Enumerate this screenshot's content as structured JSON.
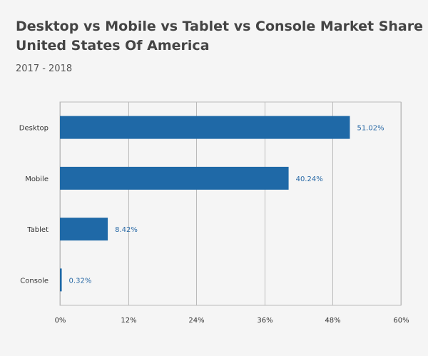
{
  "title_line1": "Desktop vs Mobile vs Tablet vs Console Market Share",
  "title_line2": "United States Of America",
  "subtitle": "2017 - 2018",
  "chart_data": {
    "type": "bar",
    "orientation": "horizontal",
    "categories": [
      "Desktop",
      "Mobile",
      "Tablet",
      "Console"
    ],
    "values": [
      51.02,
      40.24,
      8.42,
      0.32
    ],
    "data_labels": [
      "51.02%",
      "40.24%",
      "8.42%",
      "0.32%"
    ],
    "xlim": [
      0,
      60
    ],
    "ticks": [
      0,
      12,
      24,
      36,
      48,
      60
    ],
    "tick_labels": [
      "0%",
      "12%",
      "24%",
      "36%",
      "48%",
      "60%"
    ],
    "grid": true,
    "colors": {
      "bar": "#1f69a7",
      "label": "#2a6aa6",
      "grid": "#bbbbbb"
    }
  }
}
